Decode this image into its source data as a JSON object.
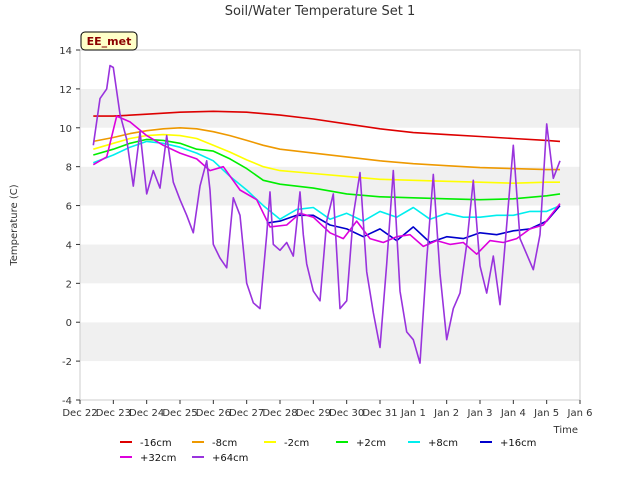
{
  "chart_data": {
    "type": "line",
    "title": "Soil/Water Temperature Set 1",
    "xlabel": "Time",
    "ylabel": "Temperature (C)",
    "tag": "EE_met",
    "x_ticks": [
      "Dec 22",
      "Dec 23",
      "Dec 24",
      "Dec 25",
      "Dec 26",
      "Dec 27",
      "Dec 28",
      "Dec 29",
      "Dec 30",
      "Dec 31",
      "Jan 1",
      "Jan 2",
      "Jan 3",
      "Jan 4",
      "Jan 5",
      "Jan 6"
    ],
    "xlim": [
      0,
      15
    ],
    "ylim": [
      -4,
      14
    ],
    "y_ticks": [
      -4,
      -2,
      0,
      2,
      4,
      6,
      8,
      10,
      12,
      14
    ],
    "legend_position": "bottom",
    "grid": "alternating-bands",
    "series": [
      {
        "name": "-16cm",
        "color": "#dd0000",
        "x": [
          0.4,
          1,
          2,
          3,
          4,
          5,
          6,
          7,
          8,
          9,
          10,
          11,
          12,
          13,
          14,
          14.4
        ],
        "y": [
          10.6,
          10.6,
          10.7,
          10.8,
          10.85,
          10.8,
          10.65,
          10.45,
          10.2,
          9.95,
          9.75,
          9.65,
          9.55,
          9.45,
          9.35,
          9.3
        ]
      },
      {
        "name": "-8cm",
        "color": "#ee9900",
        "x": [
          0.4,
          1,
          1.5,
          2,
          2.5,
          3,
          3.5,
          4,
          4.5,
          5,
          5.5,
          6,
          7,
          8,
          9,
          10,
          11,
          12,
          13,
          14,
          14.4
        ],
        "y": [
          9.3,
          9.5,
          9.7,
          9.85,
          9.95,
          10.0,
          9.95,
          9.8,
          9.6,
          9.35,
          9.1,
          8.9,
          8.7,
          8.5,
          8.3,
          8.15,
          8.05,
          7.95,
          7.9,
          7.85,
          7.85
        ]
      },
      {
        "name": "-2cm",
        "color": "#ffff00",
        "x": [
          0.4,
          1,
          1.5,
          2,
          2.5,
          3,
          3.5,
          4,
          4.5,
          5,
          5.5,
          6,
          7,
          8,
          9,
          10,
          11,
          12,
          13,
          14,
          14.4
        ],
        "y": [
          8.9,
          9.2,
          9.45,
          9.6,
          9.65,
          9.6,
          9.45,
          9.1,
          8.75,
          8.35,
          8.0,
          7.8,
          7.65,
          7.5,
          7.35,
          7.3,
          7.25,
          7.2,
          7.15,
          7.2,
          7.2
        ]
      },
      {
        "name": "+2cm",
        "color": "#00ee00",
        "x": [
          0.4,
          1,
          1.5,
          2,
          2.5,
          3,
          3.5,
          4,
          4.5,
          5,
          5.5,
          6,
          7,
          8,
          9,
          10,
          11,
          12,
          13,
          14,
          14.4
        ],
        "y": [
          8.6,
          8.9,
          9.2,
          9.4,
          9.35,
          9.2,
          8.9,
          8.8,
          8.4,
          7.9,
          7.3,
          7.1,
          6.9,
          6.6,
          6.45,
          6.4,
          6.35,
          6.3,
          6.35,
          6.5,
          6.6
        ]
      },
      {
        "name": "+8cm",
        "color": "#00eeee",
        "x": [
          0.4,
          1,
          1.5,
          2,
          2.5,
          3,
          3.5,
          4,
          4.5,
          5,
          5.5,
          6,
          6.5,
          7,
          7.5,
          8,
          8.5,
          9,
          9.5,
          10,
          10.5,
          11,
          11.5,
          12,
          12.5,
          13,
          13.5,
          14,
          14.4
        ],
        "y": [
          8.2,
          8.6,
          9.0,
          9.3,
          9.2,
          9.0,
          8.7,
          8.3,
          7.5,
          6.8,
          6.0,
          5.3,
          5.8,
          5.9,
          5.3,
          5.6,
          5.2,
          5.7,
          5.4,
          5.9,
          5.3,
          5.6,
          5.4,
          5.4,
          5.5,
          5.5,
          5.7,
          5.7,
          6.0
        ]
      },
      {
        "name": "+16cm",
        "color": "#0000cc",
        "x": [
          5.6,
          6,
          6.5,
          7,
          7.5,
          8,
          8.5,
          9,
          9.5,
          10,
          10.5,
          11,
          11.5,
          12,
          12.5,
          13,
          13.5,
          14,
          14.4
        ],
        "y": [
          5.1,
          5.2,
          5.5,
          5.5,
          5.0,
          4.8,
          4.4,
          4.8,
          4.2,
          4.9,
          4.1,
          4.4,
          4.3,
          4.6,
          4.5,
          4.7,
          4.8,
          5.2,
          6.0
        ]
      },
      {
        "name": "+32cm",
        "color": "#dd00dd",
        "x": [
          0.4,
          0.8,
          1.1,
          1.5,
          2,
          2.5,
          3,
          3.5,
          3.9,
          4.3,
          4.8,
          5.3,
          5.7,
          6.2,
          6.6,
          7,
          7.5,
          7.9,
          8.3,
          8.7,
          9.1,
          9.5,
          9.9,
          10.3,
          10.7,
          11.1,
          11.5,
          11.9,
          12.3,
          12.7,
          13.1,
          13.5,
          13.9,
          14.4
        ],
        "y": [
          8.1,
          8.5,
          10.6,
          10.3,
          9.6,
          9.1,
          8.7,
          8.4,
          7.8,
          8.0,
          6.8,
          6.3,
          4.9,
          5.0,
          5.6,
          5.4,
          4.6,
          4.3,
          5.2,
          4.3,
          4.1,
          4.4,
          4.5,
          3.9,
          4.2,
          4.0,
          4.1,
          3.5,
          4.2,
          4.1,
          4.3,
          4.8,
          5.0,
          6.1
        ]
      },
      {
        "name": "+64cm",
        "color": "#9933dd",
        "x": [
          0.4,
          0.6,
          0.8,
          0.9,
          1.0,
          1.2,
          1.4,
          1.6,
          1.8,
          2.0,
          2.2,
          2.4,
          2.6,
          2.8,
          3.0,
          3.2,
          3.4,
          3.6,
          3.8,
          3.9,
          4.0,
          4.2,
          4.4,
          4.6,
          4.8,
          5.0,
          5.2,
          5.4,
          5.6,
          5.7,
          5.8,
          6.0,
          6.2,
          6.4,
          6.6,
          6.7,
          6.8,
          7.0,
          7.2,
          7.4,
          7.6,
          7.8,
          8.0,
          8.2,
          8.4,
          8.6,
          8.8,
          9.0,
          9.2,
          9.4,
          9.6,
          9.8,
          10.0,
          10.2,
          10.4,
          10.6,
          10.8,
          11.0,
          11.2,
          11.4,
          11.6,
          11.8,
          12.0,
          12.2,
          12.4,
          12.6,
          12.8,
          13.0,
          13.2,
          13.4,
          13.6,
          13.8,
          14.0,
          14.2,
          14.4
        ],
        "y": [
          9.1,
          11.5,
          12.0,
          13.2,
          13.1,
          10.7,
          9.4,
          7.0,
          9.8,
          6.6,
          7.8,
          6.9,
          9.6,
          7.2,
          6.3,
          5.5,
          4.6,
          7.0,
          8.3,
          6.8,
          4.0,
          3.3,
          2.8,
          6.4,
          5.5,
          2.0,
          1.0,
          0.7,
          4.5,
          6.7,
          4.0,
          3.7,
          4.1,
          3.4,
          6.7,
          4.5,
          3.0,
          1.6,
          1.1,
          5.2,
          6.6,
          0.7,
          1.1,
          5.5,
          7.7,
          2.6,
          0.5,
          -1.3,
          3.0,
          7.8,
          1.6,
          -0.5,
          -0.9,
          -2.1,
          3.2,
          7.6,
          2.5,
          -0.9,
          0.7,
          1.5,
          4.0,
          7.3,
          2.9,
          1.5,
          3.4,
          0.9,
          5.0,
          9.1,
          4.3,
          3.5,
          2.7,
          4.5,
          10.2,
          7.4,
          8.3
        ]
      }
    ]
  }
}
